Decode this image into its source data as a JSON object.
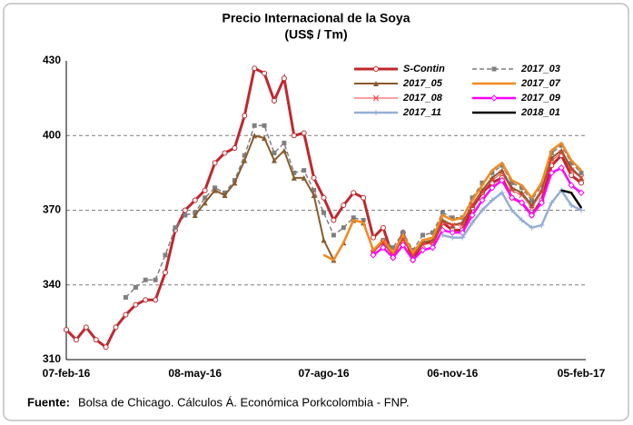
{
  "chart_data": {
    "type": "line",
    "title": "Precio Internacional de la Soya",
    "subtitle": "(US$ / Tm)",
    "categories": [
      "07-feb-16",
      null,
      null,
      null,
      null,
      null,
      null,
      null,
      null,
      null,
      null,
      null,
      null,
      "08-may-16",
      null,
      null,
      null,
      null,
      null,
      null,
      null,
      null,
      null,
      null,
      null,
      null,
      "07-ago-16",
      null,
      null,
      null,
      null,
      null,
      null,
      null,
      null,
      null,
      null,
      null,
      null,
      "06-nov-16",
      null,
      null,
      null,
      null,
      null,
      null,
      null,
      null,
      null,
      null,
      null,
      null,
      "05-feb-17"
    ],
    "ylim": [
      310,
      430
    ],
    "yticks": [
      310,
      340,
      370,
      400,
      430
    ],
    "grid": true,
    "series": [
      {
        "name": "S-Contin",
        "color": "#c0272d",
        "line_width": 3,
        "marker": "circle",
        "values": [
          322,
          318,
          323,
          318,
          315,
          323,
          328,
          332,
          334,
          334,
          345,
          362,
          370,
          374,
          378,
          389,
          393,
          395,
          408,
          427,
          425,
          414,
          423,
          400,
          401,
          383,
          375,
          366,
          372,
          377,
          375,
          359,
          363,
          351,
          361,
          350,
          357,
          357,
          365,
          362,
          362,
          371,
          377,
          381,
          383,
          375,
          373,
          368,
          374,
          388,
          392,
          384,
          381
        ]
      },
      {
        "name": "2017_03",
        "color": "#7f7f7f",
        "line_width": 1.5,
        "marker": "square",
        "dash": true,
        "values": [
          null,
          null,
          null,
          null,
          null,
          null,
          335,
          339,
          342,
          342,
          352,
          363,
          368,
          369,
          375,
          379,
          377,
          382,
          392,
          404,
          404,
          393,
          397,
          385,
          386,
          378,
          369,
          360,
          363,
          367,
          366,
          353,
          358,
          355,
          361,
          354,
          360,
          361,
          369,
          367,
          367,
          375,
          381,
          385,
          388,
          381,
          379,
          374,
          380,
          393,
          396,
          389,
          385
        ]
      },
      {
        "name": "2017_05",
        "color": "#8b5a2b",
        "line_width": 2,
        "marker": "triangle",
        "values": [
          null,
          null,
          null,
          null,
          null,
          null,
          null,
          null,
          null,
          null,
          null,
          null,
          null,
          368,
          373,
          378,
          376,
          381,
          390,
          400,
          399,
          390,
          394,
          383,
          383,
          376,
          358,
          350,
          357,
          366,
          365,
          354,
          357,
          352,
          359,
          352,
          357,
          358,
          366,
          364,
          365,
          372,
          378,
          383,
          386,
          379,
          377,
          372,
          378,
          391,
          394,
          387,
          383
        ]
      },
      {
        "name": "2017_07",
        "color": "#f28a1e",
        "line_width": 2.5,
        "marker": "none",
        "values": [
          null,
          null,
          null,
          null,
          null,
          null,
          null,
          null,
          null,
          null,
          null,
          null,
          null,
          null,
          null,
          null,
          null,
          null,
          null,
          null,
          null,
          null,
          null,
          null,
          null,
          null,
          352,
          350,
          357,
          366,
          365,
          354,
          358,
          353,
          360,
          353,
          358,
          359,
          368,
          366,
          367,
          374,
          380,
          386,
          389,
          382,
          380,
          375,
          381,
          394,
          397,
          390,
          386
        ]
      },
      {
        "name": "2017_08",
        "color": "#ee4040",
        "line_width": 1,
        "marker": "x",
        "values": [
          null,
          null,
          null,
          null,
          null,
          null,
          null,
          null,
          null,
          null,
          null,
          null,
          null,
          null,
          null,
          null,
          null,
          null,
          null,
          null,
          null,
          null,
          null,
          null,
          null,
          null,
          null,
          null,
          null,
          null,
          null,
          353,
          357,
          352,
          358,
          352,
          356,
          357,
          365,
          364,
          364,
          372,
          377,
          382,
          385,
          378,
          376,
          371,
          377,
          390,
          393,
          386,
          383
        ]
      },
      {
        "name": "2017_09",
        "color": "#ff00ff",
        "line_width": 2.5,
        "marker": "diamond",
        "values": [
          null,
          null,
          null,
          null,
          null,
          null,
          null,
          null,
          null,
          null,
          null,
          null,
          null,
          null,
          null,
          null,
          null,
          null,
          null,
          null,
          null,
          null,
          null,
          null,
          null,
          null,
          null,
          null,
          null,
          null,
          null,
          352,
          355,
          351,
          356,
          350,
          354,
          355,
          362,
          361,
          361,
          368,
          374,
          379,
          382,
          375,
          373,
          368,
          373,
          385,
          387,
          380,
          377
        ]
      },
      {
        "name": "2017_11",
        "color": "#94aed6",
        "line_width": 2.5,
        "marker": "plus",
        "values": [
          null,
          null,
          null,
          null,
          null,
          null,
          null,
          null,
          null,
          null,
          null,
          null,
          null,
          null,
          null,
          null,
          null,
          null,
          null,
          null,
          null,
          null,
          null,
          null,
          null,
          null,
          null,
          null,
          null,
          null,
          null,
          null,
          null,
          null,
          null,
          null,
          null,
          null,
          360,
          359,
          359,
          365,
          370,
          374,
          377,
          370,
          366,
          363,
          364,
          373,
          378,
          372,
          370
        ]
      },
      {
        "name": "2018_01",
        "color": "#000000",
        "line_width": 2.5,
        "marker": "none",
        "values": [
          null,
          null,
          null,
          null,
          null,
          null,
          null,
          null,
          null,
          null,
          null,
          null,
          null,
          null,
          null,
          null,
          null,
          null,
          null,
          null,
          null,
          null,
          null,
          null,
          null,
          null,
          null,
          null,
          null,
          null,
          null,
          null,
          null,
          null,
          null,
          null,
          null,
          null,
          null,
          null,
          null,
          null,
          null,
          null,
          null,
          null,
          null,
          null,
          null,
          null,
          378,
          377,
          371
        ]
      }
    ]
  },
  "footer": {
    "label": "Fuente:",
    "text": "Bolsa de Chicago. Cálculos Á. Económica Porkcolombia - FNP."
  }
}
